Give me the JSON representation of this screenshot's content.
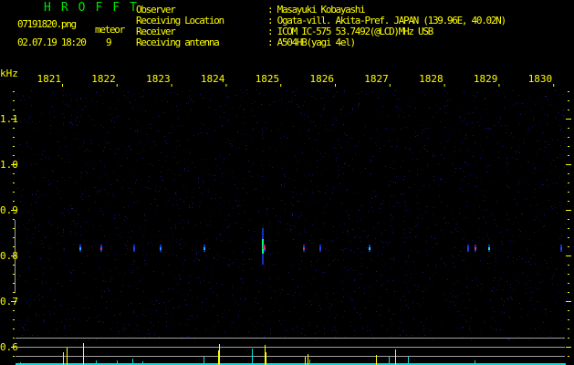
{
  "header": {
    "app_title": "HROFFT",
    "filename": "07191820.png",
    "datetime": "02.07.19 18:20",
    "meteor_label": "meteor",
    "meteor_count": "9",
    "info": [
      {
        "label": "Observer",
        "value": ": Masayuki Kobayashi"
      },
      {
        "label": "Receiving Location",
        "value": ": Ogata-vill. Akita-Pref. JAPAN (139.96E, 40.02N)"
      },
      {
        "label": "Receiver",
        "value": ": ICOM IC-575 53.7492(@LCD)MHz USB"
      },
      {
        "label": "Receiving antenna",
        "value": ": A504HB(yagi 4el)"
      }
    ]
  },
  "plot": {
    "y_unit": "kHz",
    "x_ticks": [
      "1821",
      "1822",
      "1823",
      "1824",
      "1825",
      "1826",
      "1827",
      "1828",
      "1829",
      "1830"
    ],
    "y_ticks": [
      "1.1",
      "1.0",
      "0.9",
      "0.8",
      "0.7",
      "0.6"
    ],
    "colors": {
      "text": "#ffff00",
      "title": "#00e000",
      "noise": "#1a1a8a",
      "peak": "#ffff00",
      "base": "#00e0e0",
      "grid": "#a0a0a0"
    }
  }
}
